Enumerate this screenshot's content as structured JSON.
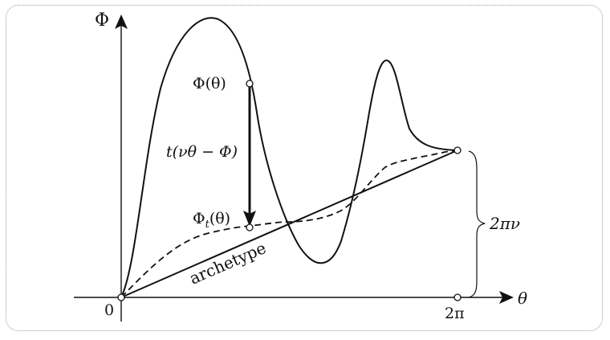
{
  "figure": {
    "y_axis_label": "Φ",
    "x_axis_label": "θ",
    "origin_label": "0",
    "x_end_label": "2π",
    "upper_point_label": "Φ(θ)",
    "lower_point_label_main": "Φ",
    "lower_point_label_sub": "t",
    "lower_point_label_arg": "(θ)",
    "arrow_label": "t(νθ − Φ)",
    "brace_label": "2πν",
    "line_label": "archetype"
  },
  "colors": {
    "ink": "#111111",
    "frame": "#9a9a9a"
  }
}
